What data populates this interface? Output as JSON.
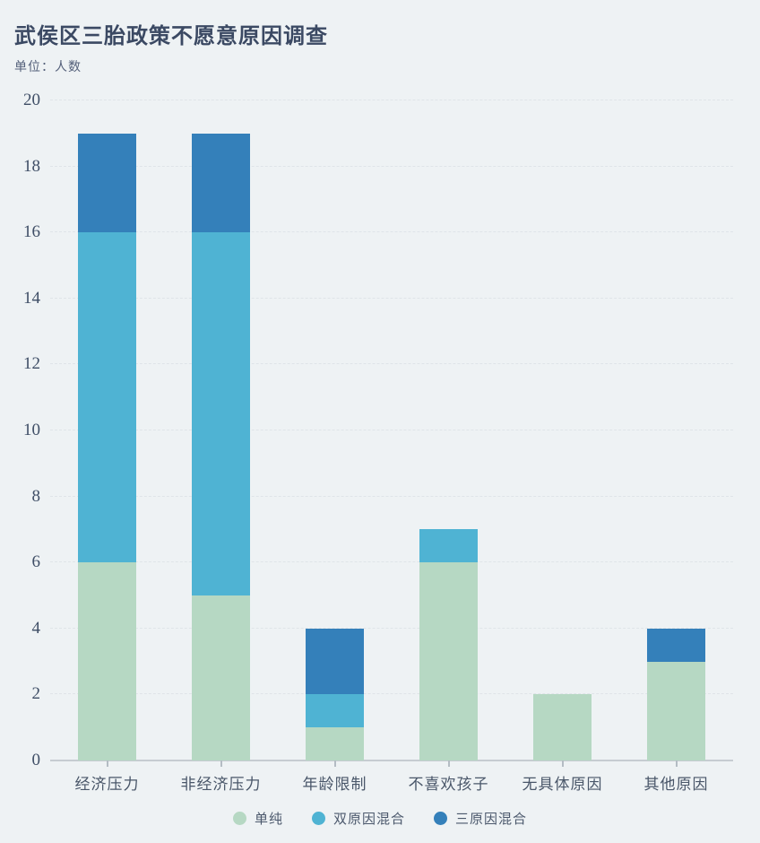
{
  "page": {
    "background": "#eef2f4"
  },
  "header": {
    "title": "武侯区三胎政策不愿意原因调查",
    "unit_label": "单位：人数"
  },
  "chart_data": {
    "type": "bar",
    "stacked": true,
    "title": "武侯区三胎政策不愿意原因调查",
    "subtitle": "单位：人数",
    "xlabel": "",
    "ylabel": "人数",
    "categories": [
      "经济压力",
      "非经济压力",
      "年龄限制",
      "不喜欢孩子",
      "无具体原因",
      "其他原因"
    ],
    "series": [
      {
        "name": "单纯",
        "color": "#b6d8c3",
        "values": [
          6,
          5,
          1,
          6,
          2,
          3
        ]
      },
      {
        "name": "双原因混合",
        "color": "#4fb3d3",
        "values": [
          10,
          11,
          1,
          1,
          0,
          0
        ]
      },
      {
        "name": "三原因混合",
        "color": "#3480ba",
        "values": [
          3,
          3,
          2,
          0,
          0,
          1
        ]
      }
    ],
    "totals": [
      19,
      19,
      4,
      7,
      2,
      4
    ],
    "ylim": [
      0,
      20
    ],
    "y_ticks": [
      0,
      2,
      4,
      6,
      8,
      10,
      12,
      14,
      16,
      18,
      20
    ],
    "grid": true,
    "gridline_style": "dashed",
    "legend_position": "bottom"
  },
  "colors": {
    "background": "#eef2f4",
    "gridline": "#dfe4e8",
    "axis_line": "#c6ccd2",
    "title_text": "#3b4963",
    "axis_text": "#3f4e66",
    "category_text": "#495669",
    "legend_text": "#4b586c"
  }
}
